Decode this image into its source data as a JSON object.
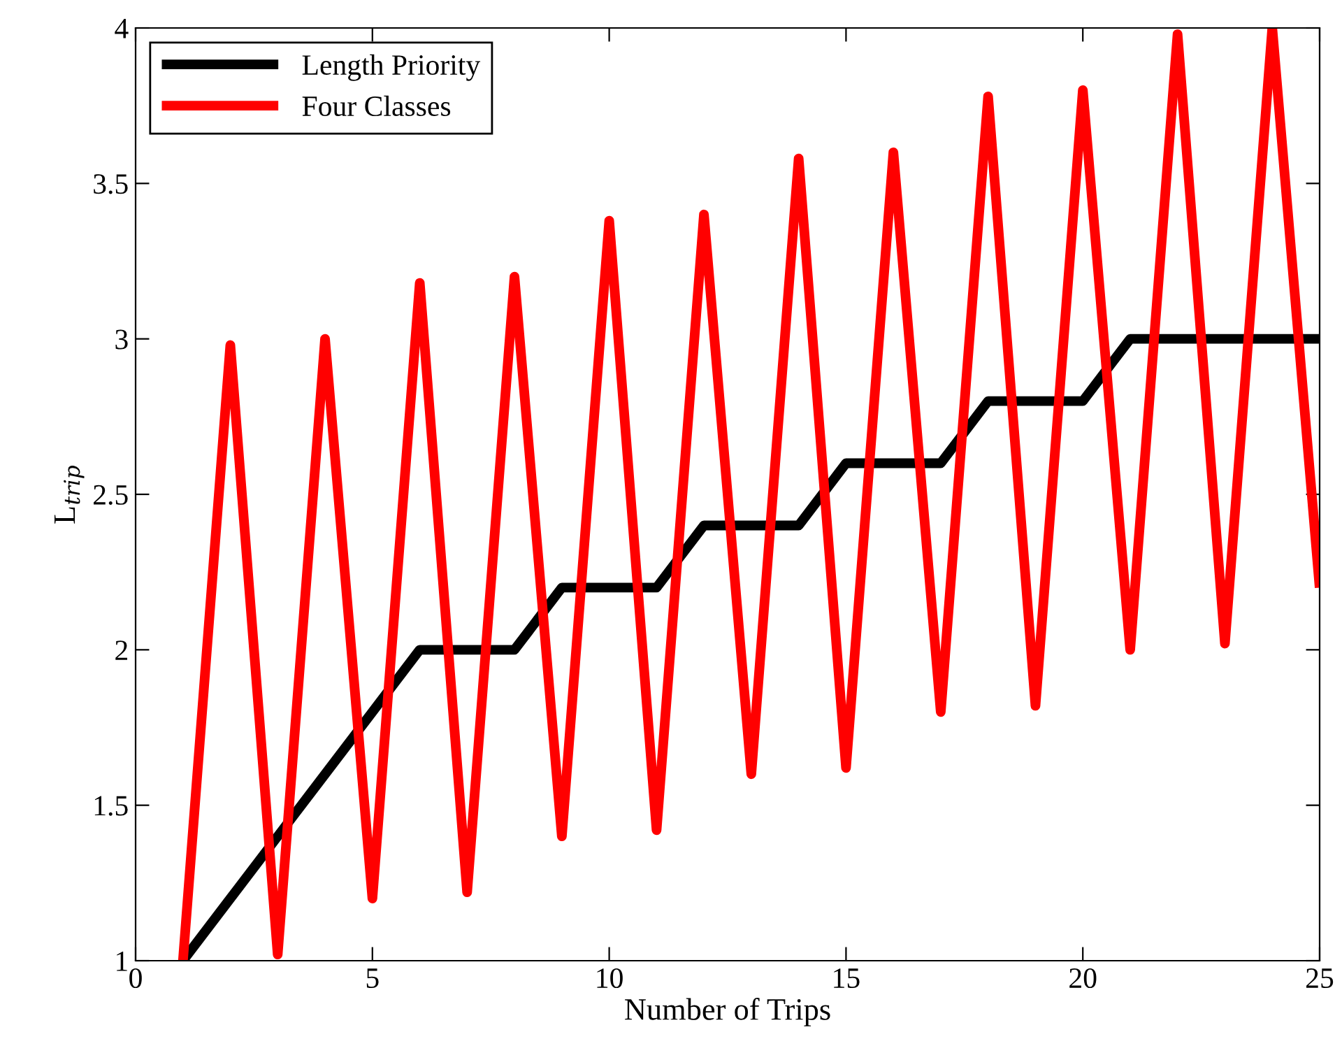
{
  "chart_data": {
    "type": "line",
    "xlabel": "Number of Trips",
    "ylabel": "L$_{trip}$",
    "x": [
      1,
      2,
      3,
      4,
      5,
      6,
      7,
      8,
      9,
      10,
      11,
      12,
      13,
      14,
      15,
      16,
      17,
      18,
      19,
      20,
      21,
      22,
      23,
      24,
      25
    ],
    "series": [
      {
        "name": "Length Priority",
        "color": "#000000",
        "values": [
          1.0,
          1.2,
          1.4,
          1.6,
          1.8,
          2.0,
          2.0,
          2.0,
          2.2,
          2.2,
          2.2,
          2.4,
          2.4,
          2.4,
          2.6,
          2.6,
          2.6,
          2.8,
          2.8,
          2.8,
          3.0,
          3.0,
          3.0,
          3.0,
          3.0
        ]
      },
      {
        "name": "Four Classes",
        "color": "#ff0000",
        "values": [
          1.0,
          2.98,
          1.02,
          3.0,
          1.2,
          3.18,
          1.22,
          3.2,
          1.4,
          3.38,
          1.42,
          3.4,
          1.6,
          3.58,
          1.62,
          3.6,
          1.8,
          3.78,
          1.82,
          3.8,
          2.0,
          3.98,
          2.02,
          4.0,
          2.2
        ]
      }
    ],
    "xlim": [
      0,
      25
    ],
    "ylim": [
      1,
      4
    ],
    "xticks": [
      0,
      5,
      10,
      15,
      20,
      25
    ],
    "yticks": [
      1,
      1.5,
      2,
      2.5,
      3,
      3.5,
      4
    ],
    "grid": false,
    "legend": "top left",
    "marker": "none",
    "line_style": "solid"
  }
}
